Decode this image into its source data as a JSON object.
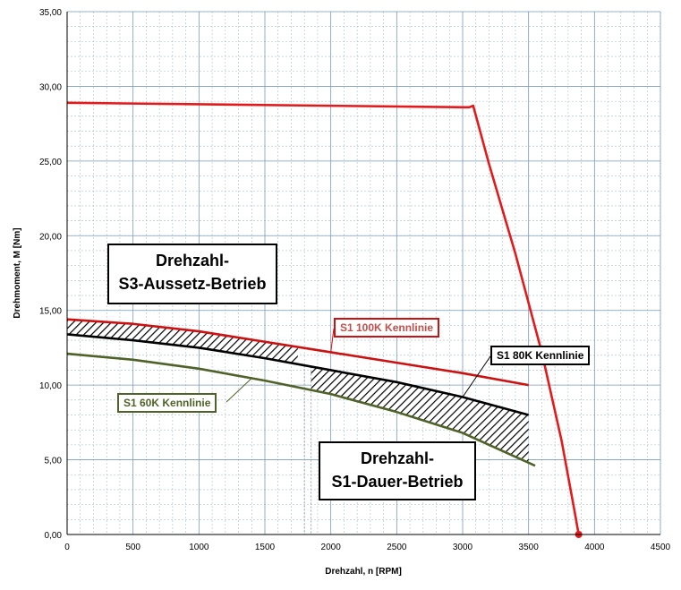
{
  "chart_data": {
    "type": "line",
    "xlabel": "Drehzahl,  n [RPM]",
    "ylabel": "Drehmoment,  M [Nm]",
    "xlim": [
      0,
      4500
    ],
    "ylim": [
      0,
      35
    ],
    "x_ticks": [
      "0",
      "500",
      "1000",
      "1500",
      "2000",
      "2500",
      "3000",
      "3500",
      "4000",
      "4500"
    ],
    "y_ticks": [
      "0,00",
      "5,00",
      "10,00",
      "15,00",
      "20,00",
      "25,00",
      "30,00",
      "35,00"
    ],
    "grid": true,
    "series": [
      {
        "key": "s3",
        "color": "#e31a1c",
        "x": [
          0,
          1000,
          2000,
          3000,
          3050,
          3080,
          3200,
          3400,
          3600,
          3750,
          3850,
          3880
        ],
        "y": [
          28.9,
          28.8,
          28.7,
          28.6,
          28.6,
          28.7,
          24.8,
          18.8,
          12.2,
          6.3,
          1.5,
          0
        ]
      },
      {
        "key": "s1_100k",
        "name": "S1 100K Kennlinie",
        "color": "#cc1111",
        "x": [
          0,
          500,
          1000,
          1500,
          2000,
          2500,
          3000,
          3500
        ],
        "y": [
          14.4,
          14.1,
          13.6,
          12.9,
          12.2,
          11.5,
          10.8,
          10.0
        ]
      },
      {
        "key": "s1_80k",
        "name": "S1 80K Kennlinie",
        "color": "#000000",
        "x": [
          0,
          500,
          1000,
          1500,
          2000,
          2500,
          3000,
          3500
        ],
        "y": [
          13.4,
          13.0,
          12.5,
          11.8,
          11.0,
          10.2,
          9.2,
          8.0
        ]
      },
      {
        "key": "s1_60k",
        "name": "S1 60K Kennlinie",
        "color": "#4f6228",
        "x": [
          0,
          500,
          1000,
          1500,
          2000,
          2500,
          3000,
          3550
        ],
        "y": [
          12.1,
          11.7,
          11.1,
          10.3,
          9.4,
          8.2,
          6.8,
          4.6
        ]
      }
    ],
    "end_marker": {
      "x": 3880,
      "y": 0,
      "color": "#e31a1c"
    },
    "labels": {
      "s3_region": [
        "Drehzahl-",
        "S3-Aussetz-Betrieb"
      ],
      "s1_region": [
        "Drehzahl-",
        "S1-Dauer-Betrieb"
      ],
      "s1_100k": "S1 100K Kennlinie",
      "s1_80k": "S1 80K Kennlinie",
      "s1_60k": "S1 60K Kennlinie"
    }
  }
}
